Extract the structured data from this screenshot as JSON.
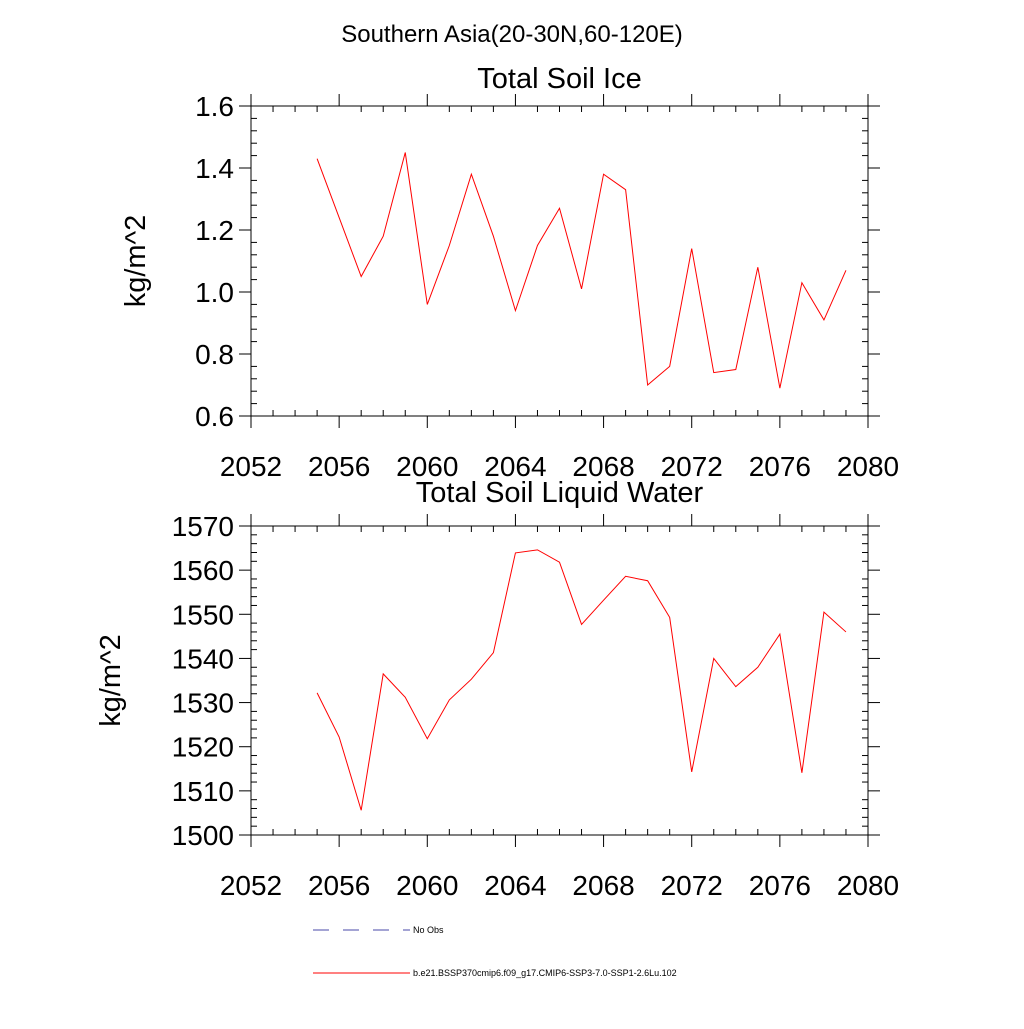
{
  "figure": {
    "suptitle": "Southern Asia(20-30N,60-120E)",
    "legend": [
      {
        "label": "No Obs",
        "color": "#4a4aa8",
        "dash": true
      },
      {
        "label": "b.e21.BSSP370cmip6.f09_g17.CMIP6-SSP3-7.0-SSP1-2.6Lu.102",
        "color": "#ff0000",
        "dash": false
      }
    ]
  },
  "chart_data": [
    {
      "type": "line",
      "title": "Total Soil Ice",
      "xlabel": "",
      "ylabel": "kg/m^2",
      "xlim": [
        2052,
        2080
      ],
      "ylim": [
        0.6,
        1.6
      ],
      "xticks": [
        2052,
        2056,
        2060,
        2064,
        2068,
        2072,
        2076,
        2080
      ],
      "yticks": [
        0.6,
        0.8,
        1.0,
        1.2,
        1.4,
        1.6
      ],
      "ytick_labels": [
        "0.6",
        "0.8",
        "1.0",
        "1.2",
        "1.4",
        "1.6"
      ],
      "x_minor_step": 1,
      "y_minor_step": 0.04,
      "grid": false,
      "series": [
        {
          "name": "b.e21.BSSP370cmip6.f09_g17.CMIP6-SSP3-7.0-SSP1-2.6Lu.102",
          "color": "#ff0000",
          "x": [
            2055,
            2056,
            2057,
            2058,
            2059,
            2060,
            2061,
            2062,
            2063,
            2064,
            2065,
            2066,
            2067,
            2068,
            2069,
            2070,
            2071,
            2072,
            2073,
            2074,
            2075,
            2076,
            2077,
            2078,
            2079
          ],
          "y": [
            1.43,
            1.24,
            1.05,
            1.18,
            1.45,
            0.96,
            1.15,
            1.38,
            1.18,
            0.94,
            1.15,
            1.27,
            1.01,
            1.38,
            1.33,
            0.7,
            0.76,
            1.14,
            0.74,
            0.75,
            1.08,
            0.69,
            1.03,
            0.91,
            1.07
          ]
        }
      ]
    },
    {
      "type": "line",
      "title": "Total Soil Liquid Water",
      "xlabel": "",
      "ylabel": "kg/m^2",
      "xlim": [
        2052,
        2080
      ],
      "ylim": [
        1500,
        1570
      ],
      "xticks": [
        2052,
        2056,
        2060,
        2064,
        2068,
        2072,
        2076,
        2080
      ],
      "yticks": [
        1500,
        1510,
        1520,
        1530,
        1540,
        1550,
        1560,
        1570
      ],
      "ytick_labels": [
        "1500",
        "1510",
        "1520",
        "1530",
        "1540",
        "1550",
        "1560",
        "1570"
      ],
      "x_minor_step": 1,
      "y_minor_step": 2,
      "grid": false,
      "series": [
        {
          "name": "b.e21.BSSP370cmip6.f09_g17.CMIP6-SSP3-7.0-SSP1-2.6Lu.102",
          "color": "#ff0000",
          "x": [
            2055,
            2056,
            2057,
            2058,
            2059,
            2060,
            2061,
            2062,
            2063,
            2064,
            2065,
            2066,
            2067,
            2068,
            2069,
            2070,
            2071,
            2072,
            2073,
            2074,
            2075,
            2076,
            2077,
            2078,
            2079
          ],
          "y": [
            1532.2,
            1522.2,
            1505.6,
            1536.5,
            1531.2,
            1521.8,
            1530.6,
            1535.3,
            1541.3,
            1563.9,
            1564.6,
            1561.8,
            1547.7,
            1553.2,
            1558.6,
            1557.6,
            1549.3,
            1514.3,
            1540.0,
            1533.6,
            1538.0,
            1545.5,
            1514.1,
            1550.5,
            1546.0
          ]
        }
      ]
    }
  ]
}
